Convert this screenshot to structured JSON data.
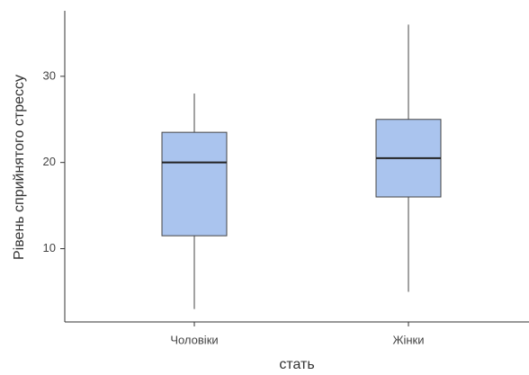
{
  "chart_data": {
    "type": "box",
    "x_label": "стать",
    "y_label": "Рівень сприйнятого стрессу",
    "categories": [
      "Чоловіки",
      "Жінки"
    ],
    "min": [
      3,
      5
    ],
    "q1": [
      11.5,
      16
    ],
    "median": [
      20,
      20.5
    ],
    "q3": [
      23.5,
      25
    ],
    "max": [
      28,
      36
    ],
    "color": "#aac4ee",
    "ylim": [
      1.5,
      37.6
    ],
    "yticks": [
      10,
      20,
      30
    ],
    "grid": false
  }
}
